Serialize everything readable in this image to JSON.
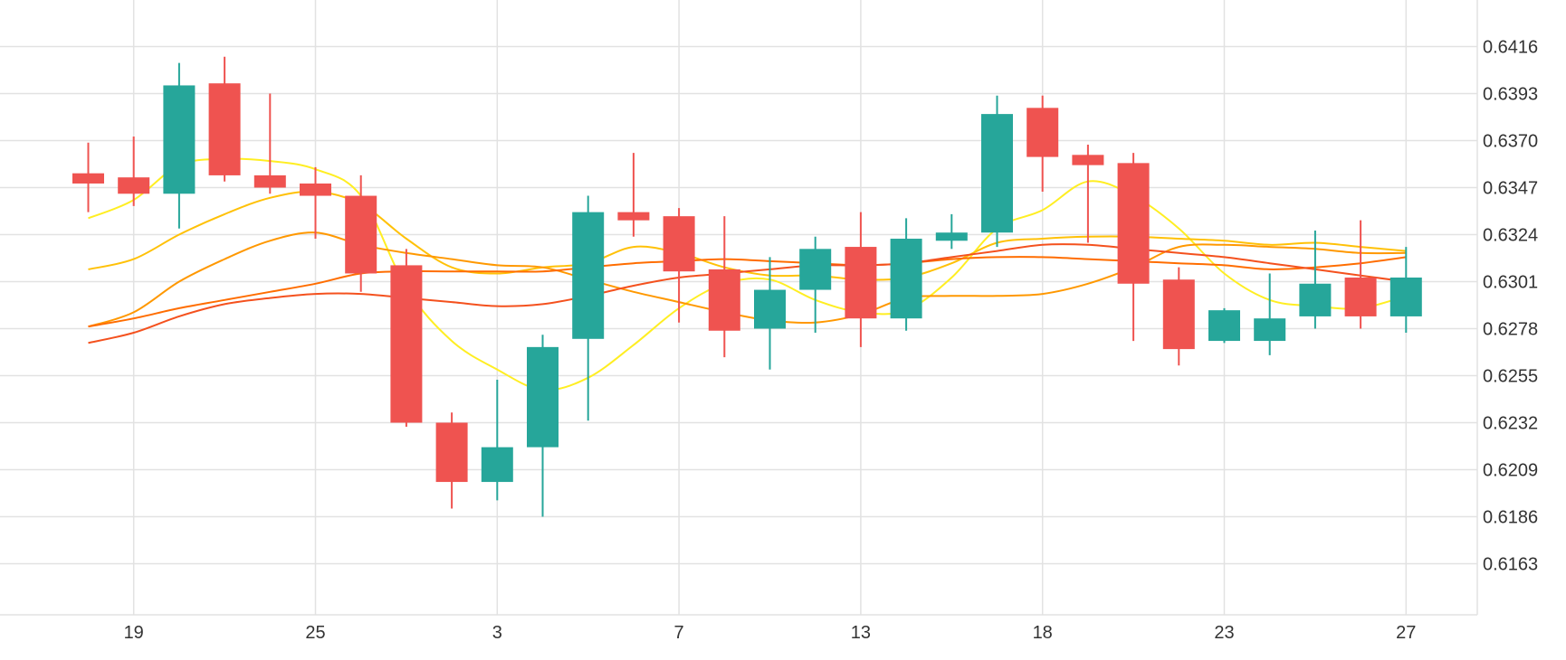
{
  "chart_data": {
    "type": "candlestick",
    "title": "",
    "xlabel": "",
    "ylabel": "",
    "ylim": [
      0.614,
      0.6439
    ],
    "grid": true,
    "y_ticks": [
      "0.6416",
      "0.6393",
      "0.6370",
      "0.6347",
      "0.6324",
      "0.6301",
      "0.6278",
      "0.6255",
      "0.6232",
      "0.6209",
      "0.6186",
      "0.6163"
    ],
    "x_ticks": [
      {
        "label": "19",
        "index": 1
      },
      {
        "label": "25",
        "index": 5
      },
      {
        "label": "3",
        "index": 9
      },
      {
        "label": "7",
        "index": 13
      },
      {
        "label": "13",
        "index": 17
      },
      {
        "label": "18",
        "index": 21
      },
      {
        "label": "23",
        "index": 25
      },
      {
        "label": "27",
        "index": 29
      }
    ],
    "colors": {
      "up": "#26a69a",
      "down": "#ef5350",
      "grid": "#e2e2e2",
      "text": "#333333"
    },
    "candles": [
      {
        "o": 0.6354,
        "h": 0.6369,
        "l": 0.6335,
        "c": 0.6349
      },
      {
        "o": 0.6352,
        "h": 0.6372,
        "l": 0.6338,
        "c": 0.6344
      },
      {
        "o": 0.6344,
        "h": 0.6408,
        "l": 0.6327,
        "c": 0.6397
      },
      {
        "o": 0.6398,
        "h": 0.6411,
        "l": 0.635,
        "c": 0.6353
      },
      {
        "o": 0.6353,
        "h": 0.6393,
        "l": 0.6344,
        "c": 0.6347
      },
      {
        "o": 0.6349,
        "h": 0.6357,
        "l": 0.6322,
        "c": 0.6343
      },
      {
        "o": 0.6343,
        "h": 0.6353,
        "l": 0.6296,
        "c": 0.6305
      },
      {
        "o": 0.6309,
        "h": 0.6317,
        "l": 0.623,
        "c": 0.6232
      },
      {
        "o": 0.6232,
        "h": 0.6237,
        "l": 0.619,
        "c": 0.6203
      },
      {
        "o": 0.6203,
        "h": 0.6253,
        "l": 0.6194,
        "c": 0.622
      },
      {
        "o": 0.622,
        "h": 0.6275,
        "l": 0.6186,
        "c": 0.6269
      },
      {
        "o": 0.6273,
        "h": 0.6343,
        "l": 0.6233,
        "c": 0.6335
      },
      {
        "o": 0.6335,
        "h": 0.6364,
        "l": 0.6323,
        "c": 0.6331
      },
      {
        "o": 0.6333,
        "h": 0.6337,
        "l": 0.6281,
        "c": 0.6306
      },
      {
        "o": 0.6307,
        "h": 0.6333,
        "l": 0.6264,
        "c": 0.6277
      },
      {
        "o": 0.6278,
        "h": 0.6313,
        "l": 0.6258,
        "c": 0.6297
      },
      {
        "o": 0.6297,
        "h": 0.6323,
        "l": 0.6276,
        "c": 0.6317
      },
      {
        "o": 0.6318,
        "h": 0.6335,
        "l": 0.6269,
        "c": 0.6283
      },
      {
        "o": 0.6283,
        "h": 0.6332,
        "l": 0.6277,
        "c": 0.6322
      },
      {
        "o": 0.6321,
        "h": 0.6334,
        "l": 0.6317,
        "c": 0.6325
      },
      {
        "o": 0.6325,
        "h": 0.6392,
        "l": 0.6318,
        "c": 0.6383
      },
      {
        "o": 0.6386,
        "h": 0.6392,
        "l": 0.6345,
        "c": 0.6362
      },
      {
        "o": 0.6363,
        "h": 0.6368,
        "l": 0.632,
        "c": 0.6358
      },
      {
        "o": 0.6359,
        "h": 0.6364,
        "l": 0.6272,
        "c": 0.63
      },
      {
        "o": 0.6302,
        "h": 0.6308,
        "l": 0.626,
        "c": 0.6268
      },
      {
        "o": 0.6272,
        "h": 0.6288,
        "l": 0.6271,
        "c": 0.6287
      },
      {
        "o": 0.6272,
        "h": 0.6305,
        "l": 0.6265,
        "c": 0.6283
      },
      {
        "o": 0.6284,
        "h": 0.6326,
        "l": 0.6278,
        "c": 0.63
      },
      {
        "o": 0.6303,
        "h": 0.6331,
        "l": 0.6278,
        "c": 0.6284
      },
      {
        "o": 0.6284,
        "h": 0.6318,
        "l": 0.6276,
        "c": 0.6303
      }
    ],
    "series": [
      {
        "color": "#ffee22",
        "points": [
          [
            0,
            0.6332
          ],
          [
            1,
            0.6341
          ],
          [
            2,
            0.6358
          ],
          [
            3,
            0.6361
          ],
          [
            4,
            0.636
          ],
          [
            5,
            0.6356
          ],
          [
            6,
            0.6343
          ],
          [
            7,
            0.6298
          ],
          [
            8,
            0.6272
          ],
          [
            9,
            0.6258
          ],
          [
            10,
            0.6248
          ],
          [
            11,
            0.6254
          ],
          [
            12,
            0.627
          ],
          [
            13,
            0.6288
          ],
          [
            14,
            0.63
          ],
          [
            15,
            0.6302
          ],
          [
            16,
            0.6292
          ],
          [
            17,
            0.6286
          ],
          [
            18,
            0.6287
          ],
          [
            19,
            0.6303
          ],
          [
            20,
            0.6327
          ],
          [
            21,
            0.6336
          ],
          [
            22,
            0.635
          ],
          [
            23,
            0.6343
          ],
          [
            24,
            0.6327
          ],
          [
            25,
            0.6305
          ],
          [
            26,
            0.6292
          ],
          [
            27,
            0.6289
          ],
          [
            28,
            0.6288
          ],
          [
            29,
            0.6294
          ]
        ]
      },
      {
        "color": "#ffc107",
        "points": [
          [
            0,
            0.6307
          ],
          [
            1,
            0.6312
          ],
          [
            2,
            0.6324
          ],
          [
            3,
            0.6334
          ],
          [
            4,
            0.6342
          ],
          [
            5,
            0.6345
          ],
          [
            6,
            0.6339
          ],
          [
            7,
            0.6322
          ],
          [
            8,
            0.6308
          ],
          [
            9,
            0.6305
          ],
          [
            10,
            0.6308
          ],
          [
            11,
            0.631
          ],
          [
            12,
            0.6318
          ],
          [
            13,
            0.6315
          ],
          [
            14,
            0.6308
          ],
          [
            15,
            0.6304
          ],
          [
            16,
            0.6304
          ],
          [
            17,
            0.6302
          ],
          [
            18,
            0.6303
          ],
          [
            19,
            0.631
          ],
          [
            20,
            0.632
          ],
          [
            21,
            0.6322
          ],
          [
            22,
            0.6323
          ],
          [
            23,
            0.6323
          ],
          [
            24,
            0.6322
          ],
          [
            25,
            0.6321
          ],
          [
            26,
            0.6319
          ],
          [
            27,
            0.632
          ],
          [
            28,
            0.6318
          ],
          [
            29,
            0.6316
          ]
        ]
      },
      {
        "color": "#ff9800",
        "points": [
          [
            0,
            0.6279
          ],
          [
            1,
            0.6286
          ],
          [
            2,
            0.6301
          ],
          [
            3,
            0.6312
          ],
          [
            4,
            0.6321
          ],
          [
            5,
            0.6325
          ],
          [
            6,
            0.6319
          ],
          [
            7,
            0.6315
          ],
          [
            8,
            0.6312
          ],
          [
            9,
            0.6309
          ],
          [
            10,
            0.6308
          ],
          [
            11,
            0.6302
          ],
          [
            12,
            0.6296
          ],
          [
            13,
            0.6291
          ],
          [
            14,
            0.6286
          ],
          [
            15,
            0.6282
          ],
          [
            16,
            0.6281
          ],
          [
            17,
            0.6285
          ],
          [
            18,
            0.6293
          ],
          [
            19,
            0.6294
          ],
          [
            20,
            0.6294
          ],
          [
            21,
            0.6295
          ],
          [
            22,
            0.63
          ],
          [
            23,
            0.6308
          ],
          [
            24,
            0.6318
          ],
          [
            25,
            0.6319
          ],
          [
            26,
            0.6318
          ],
          [
            27,
            0.6317
          ],
          [
            28,
            0.6315
          ],
          [
            29,
            0.6315
          ]
        ]
      },
      {
        "color": "#ff6d00",
        "points": [
          [
            0,
            0.6279
          ],
          [
            1,
            0.6283
          ],
          [
            2,
            0.6288
          ],
          [
            3,
            0.6292
          ],
          [
            4,
            0.6296
          ],
          [
            5,
            0.63
          ],
          [
            6,
            0.6305
          ],
          [
            7,
            0.6306
          ],
          [
            8,
            0.6306
          ],
          [
            9,
            0.6306
          ],
          [
            10,
            0.6306
          ],
          [
            11,
            0.6308
          ],
          [
            12,
            0.631
          ],
          [
            13,
            0.6311
          ],
          [
            14,
            0.6312
          ],
          [
            15,
            0.6311
          ],
          [
            16,
            0.631
          ],
          [
            17,
            0.6309
          ],
          [
            18,
            0.631
          ],
          [
            19,
            0.6312
          ],
          [
            20,
            0.6313
          ],
          [
            21,
            0.6313
          ],
          [
            22,
            0.6312
          ],
          [
            23,
            0.6311
          ],
          [
            24,
            0.631
          ],
          [
            25,
            0.6309
          ],
          [
            26,
            0.6307
          ],
          [
            27,
            0.6308
          ],
          [
            28,
            0.631
          ],
          [
            29,
            0.6313
          ]
        ]
      },
      {
        "color": "#f4511e",
        "points": [
          [
            0,
            0.6271
          ],
          [
            1,
            0.6276
          ],
          [
            2,
            0.6284
          ],
          [
            3,
            0.629
          ],
          [
            4,
            0.6293
          ],
          [
            5,
            0.6295
          ],
          [
            6,
            0.6295
          ],
          [
            7,
            0.6293
          ],
          [
            8,
            0.6291
          ],
          [
            9,
            0.6289
          ],
          [
            10,
            0.629
          ],
          [
            11,
            0.6294
          ],
          [
            12,
            0.6299
          ],
          [
            13,
            0.6303
          ],
          [
            14,
            0.6305
          ],
          [
            15,
            0.6307
          ],
          [
            16,
            0.6309
          ],
          [
            17,
            0.6309
          ],
          [
            18,
            0.631
          ],
          [
            19,
            0.6313
          ],
          [
            20,
            0.6316
          ],
          [
            21,
            0.6319
          ],
          [
            22,
            0.6319
          ],
          [
            23,
            0.6317
          ],
          [
            24,
            0.6315
          ],
          [
            25,
            0.6313
          ],
          [
            26,
            0.631
          ],
          [
            27,
            0.6307
          ],
          [
            28,
            0.6304
          ],
          [
            29,
            0.6301
          ]
        ]
      }
    ]
  }
}
